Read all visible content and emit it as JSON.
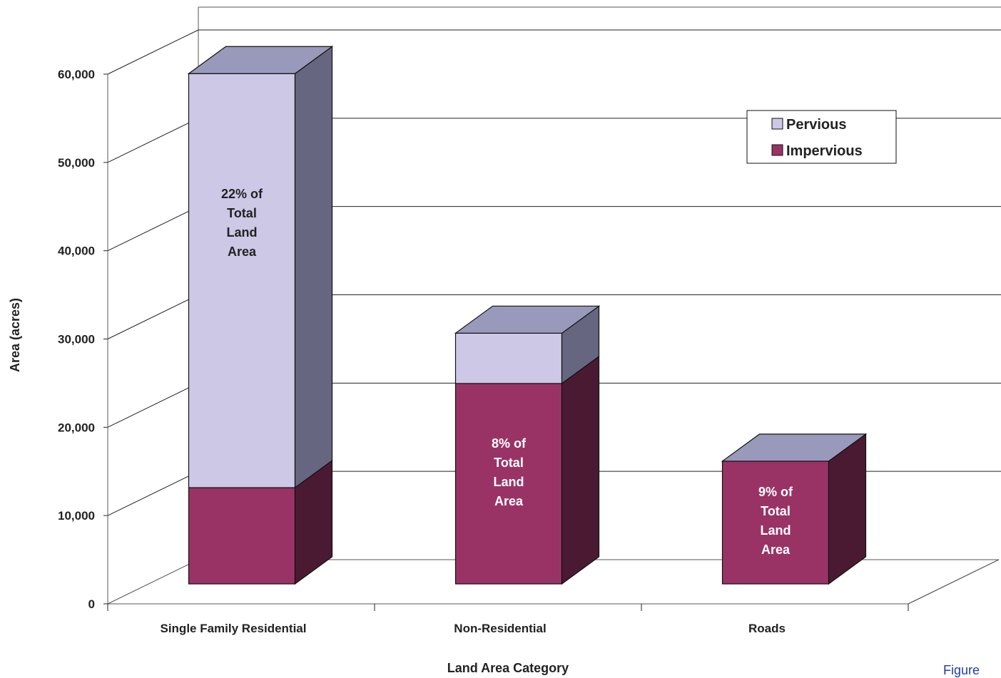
{
  "chart_data": {
    "type": "bar",
    "stacked": true,
    "three_d": true,
    "title": "",
    "xlabel": "Land Area Category",
    "ylabel": "Area (acres)",
    "ylim": [
      0,
      60000
    ],
    "yticks": [
      0,
      10000,
      20000,
      30000,
      40000,
      50000,
      60000
    ],
    "ytick_labels": [
      "0",
      "10,000",
      "20,000",
      "30,000",
      "40,000",
      "50,000",
      "60,000"
    ],
    "categories": [
      "Single Family Residential",
      "Non-Residential",
      "Roads"
    ],
    "series": [
      {
        "name": "Impervious",
        "color": "#993366",
        "side_color": "#4a1a33",
        "values": [
          10900,
          22700,
          13900
        ]
      },
      {
        "name": "Pervious",
        "color": "#ccc8e6",
        "side_color": "#666680",
        "values": [
          46900,
          5700,
          0
        ]
      }
    ],
    "top_color": "#9999bb",
    "grid": true,
    "legend": {
      "position": "top-right",
      "entries": [
        "Pervious",
        "Impervious"
      ]
    },
    "annotations": [
      {
        "category": "Single Family Residential",
        "lines": [
          "22% of",
          "Total",
          "Land",
          "Area"
        ]
      },
      {
        "category": "Non-Residential",
        "lines": [
          "8% of",
          "Total",
          "Land",
          "Area"
        ]
      },
      {
        "category": "Roads",
        "lines": [
          "9% of",
          "Total",
          "Land",
          "Area"
        ]
      }
    ]
  },
  "caption": "Figure"
}
